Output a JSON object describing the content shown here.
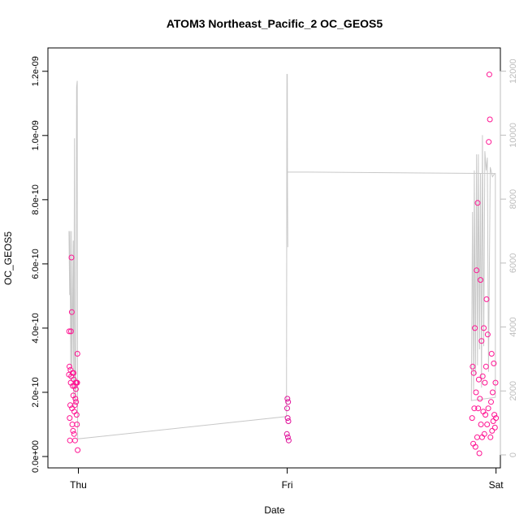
{
  "chart_data": {
    "type": "scatter",
    "title": "ATOM3 Northeast_Pacific_2 OC_GEOS5",
    "xlabel": "Date",
    "ylabel": "OC_GEOS5",
    "x_ticks": [
      "Thu",
      "Fri",
      "Sat"
    ],
    "xlim": [
      "Wed 20:30",
      "Sat 00:30"
    ],
    "ylim": [
      0,
      1.25e-09
    ],
    "y_ticks": [
      "0.0e+00",
      "2.0e-10",
      "4.0e-10",
      "6.0e-10",
      "8.0e-10",
      "1.0e-09",
      "1.2e-09"
    ],
    "ylim_right": [
      0,
      12500
    ],
    "y_ticks_right": [
      "0",
      "2000",
      "4000",
      "6000",
      "8000",
      "10000",
      "12000"
    ],
    "grid": false,
    "colors": {
      "points": "#ff1493",
      "points_alt": "#e0119a",
      "altitude_line": "#c8c8c8",
      "axis": "#000000",
      "right_axis": "#bdbdbd"
    },
    "series": [
      {
        "role": "OC_GEOS5 (left axis, points)",
        "segments": [
          {
            "from": "Wed 22:55",
            "to": "Wed 23:55",
            "values": [
              2.55e-10,
              3.9e-10,
              2.8e-10,
              1.2e-10,
              5e-11,
              1.6e-10,
              2.7e-10,
              2.3e-10,
              3.9e-10,
              2.5e-10,
              6.2e-10,
              4.5e-10,
              1.5e-10,
              1e-10,
              2.6e-10,
              2.2e-10,
              8e-11,
              1.9e-10,
              2.6e-10,
              2.4e-10,
              7e-11,
              1.4e-10,
              2.2e-10,
              1.6e-10,
              5e-11,
              1.8e-10,
              2.3e-10,
              2.1e-10,
              1.7e-10,
              2.3e-10,
              1.3e-10,
              1e-10,
              2.3e-10,
              3.2e-10,
              2e-11
            ]
          },
          {
            "from": "Thu 23:58",
            "to": "Fri 00:10",
            "values": [
              7e-11,
              1.5e-10,
              1.8e-10,
              1.2e-10,
              6e-11,
              1.7e-10,
              1.1e-10,
              5e-11
            ]
          },
          {
            "from": "Fri 21:15",
            "to": "Fri 24:00",
            "values": [
              1.2e-10,
              2.8e-10,
              4e-11,
              2.6e-10,
              1.5e-10,
              4e-10,
              3e-11,
              2e-10,
              5.8e-10,
              6e-11,
              7.9e-10,
              1.5e-10,
              2.4e-10,
              1e-11,
              1.8e-10,
              5.5e-10,
              1e-10,
              3.6e-10,
              6e-11,
              2.5e-10,
              1.4e-10,
              4e-10,
              7e-11,
              2.3e-10,
              1.3e-10,
              2.8e-10,
              4.9e-10,
              1e-10,
              3.8e-10,
              1.5e-10,
              9.8e-10,
              1.19e-09,
              1.05e-09,
              6e-11,
              1.7e-10,
              3.2e-10,
              8e-11,
              2e-10,
              1.1e-10,
              2.9e-10,
              1.3e-10,
              9e-11,
              2.3e-10,
              1.2e-10
            ]
          }
        ]
      },
      {
        "role": "altitude (right axis, grey line)",
        "points": [
          [
            "Wed 22:55",
            7000
          ],
          [
            "Wed 23:00",
            5000
          ],
          [
            "Wed 23:02",
            7000
          ],
          [
            "Wed 23:08",
            2300
          ],
          [
            "Wed 23:12",
            7000
          ],
          [
            "Wed 23:16",
            2800
          ],
          [
            "Wed 23:20",
            4300
          ],
          [
            "Wed 23:25",
            6700
          ],
          [
            "Wed 23:28",
            1500
          ],
          [
            "Wed 23:33",
            9900
          ],
          [
            "Wed 23:36",
            2400
          ],
          [
            "Wed 23:40",
            1700
          ],
          [
            "Wed 23:44",
            3600
          ],
          [
            "Wed 23:48",
            11500
          ],
          [
            "Wed 23:52",
            11700
          ],
          [
            "Wed 23:53",
            6700
          ],
          [
            "Wed 23:55",
            500
          ],
          [
            "Thu 23:55",
            1200
          ],
          [
            "Thu 23:58",
            11900
          ],
          [
            "Fri 00:01",
            11900
          ],
          [
            "Fri 00:02",
            8400
          ],
          [
            "Fri 00:04",
            6500
          ],
          [
            "Fri 00:01",
            8850
          ],
          [
            "Fri 23:55",
            8800
          ],
          [
            "Fri 23:55",
            1800
          ],
          [
            "Fri 21:10",
            1700
          ],
          [
            "Fri 21:18",
            7600
          ],
          [
            "Fri 21:25",
            2000
          ],
          [
            "Fri 21:30",
            8900
          ],
          [
            "Fri 21:38",
            2500
          ],
          [
            "Fri 21:46",
            9400
          ],
          [
            "Fri 21:52",
            2800
          ],
          [
            "Fri 21:58",
            9400
          ],
          [
            "Fri 22:06",
            3300
          ],
          [
            "Fri 22:13",
            8800
          ],
          [
            "Fri 22:20",
            2100
          ],
          [
            "Fri 22:26",
            10000
          ],
          [
            "Fri 22:35",
            3400
          ],
          [
            "Fri 22:43",
            9500
          ],
          [
            "Fri 22:52",
            8900
          ],
          [
            "Fri 23:00",
            9300
          ],
          [
            "Fri 23:08",
            2600
          ],
          [
            "Fri 23:20",
            9000
          ],
          [
            "Fri 23:35",
            8700
          ],
          [
            "Fri 23:50",
            8800
          ]
        ]
      }
    ]
  }
}
